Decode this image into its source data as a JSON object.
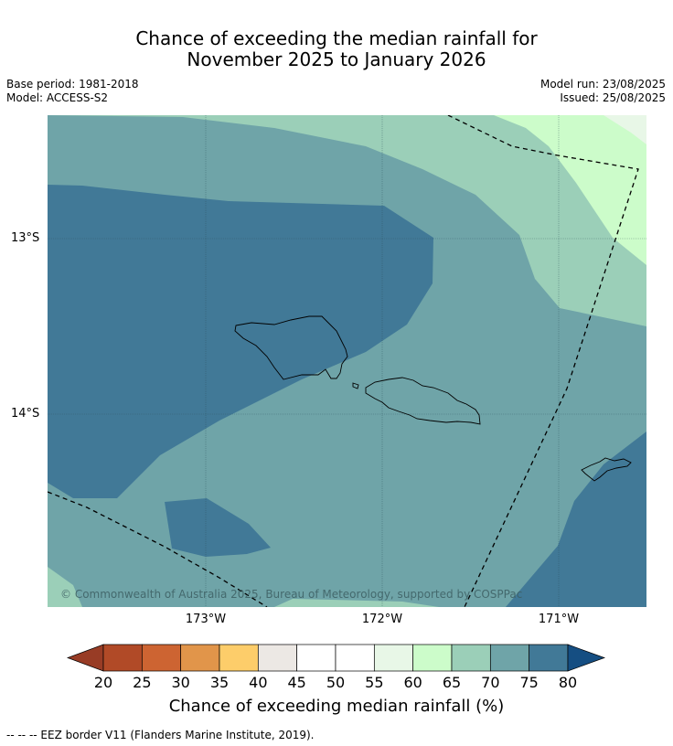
{
  "title": {
    "line1": "Chance of exceeding the median rainfall for",
    "line2": "November 2025 to January 2026"
  },
  "meta": {
    "base_period": "Base period: 1981-2018",
    "model": "Model: ACCESS-S2",
    "model_run": "Model run: 23/08/2025",
    "issued": "Issued: 25/08/2025"
  },
  "map": {
    "copyright": "© Commonwealth of Australia 2025, Bureau of Meteorology, supported by COSPPac",
    "lat_labels": [
      "13°S",
      "14°S"
    ],
    "lon_labels": [
      "173°W",
      "172°W",
      "171°W"
    ],
    "region": "Samoa"
  },
  "colorbar": {
    "ticks": [
      "20",
      "25",
      "30",
      "35",
      "40",
      "45",
      "50",
      "55",
      "60",
      "65",
      "70",
      "75",
      "80"
    ],
    "colors": [
      "#b14a27",
      "#cd6432",
      "#e1954a",
      "#fdcd6a",
      "#ece8e4",
      "#ffffff",
      "#ffffff",
      "#e8f7e7",
      "#ccfcca",
      "#9bcfb8",
      "#6fa4a8",
      "#417997"
    ],
    "under_color": "#983c25",
    "over_color": "#154e82",
    "title": "Chance of exceeding median rainfall (%)"
  },
  "footer": "--  --  -- EEZ border V11 (Flanders Marine Institute, 2019)."
}
